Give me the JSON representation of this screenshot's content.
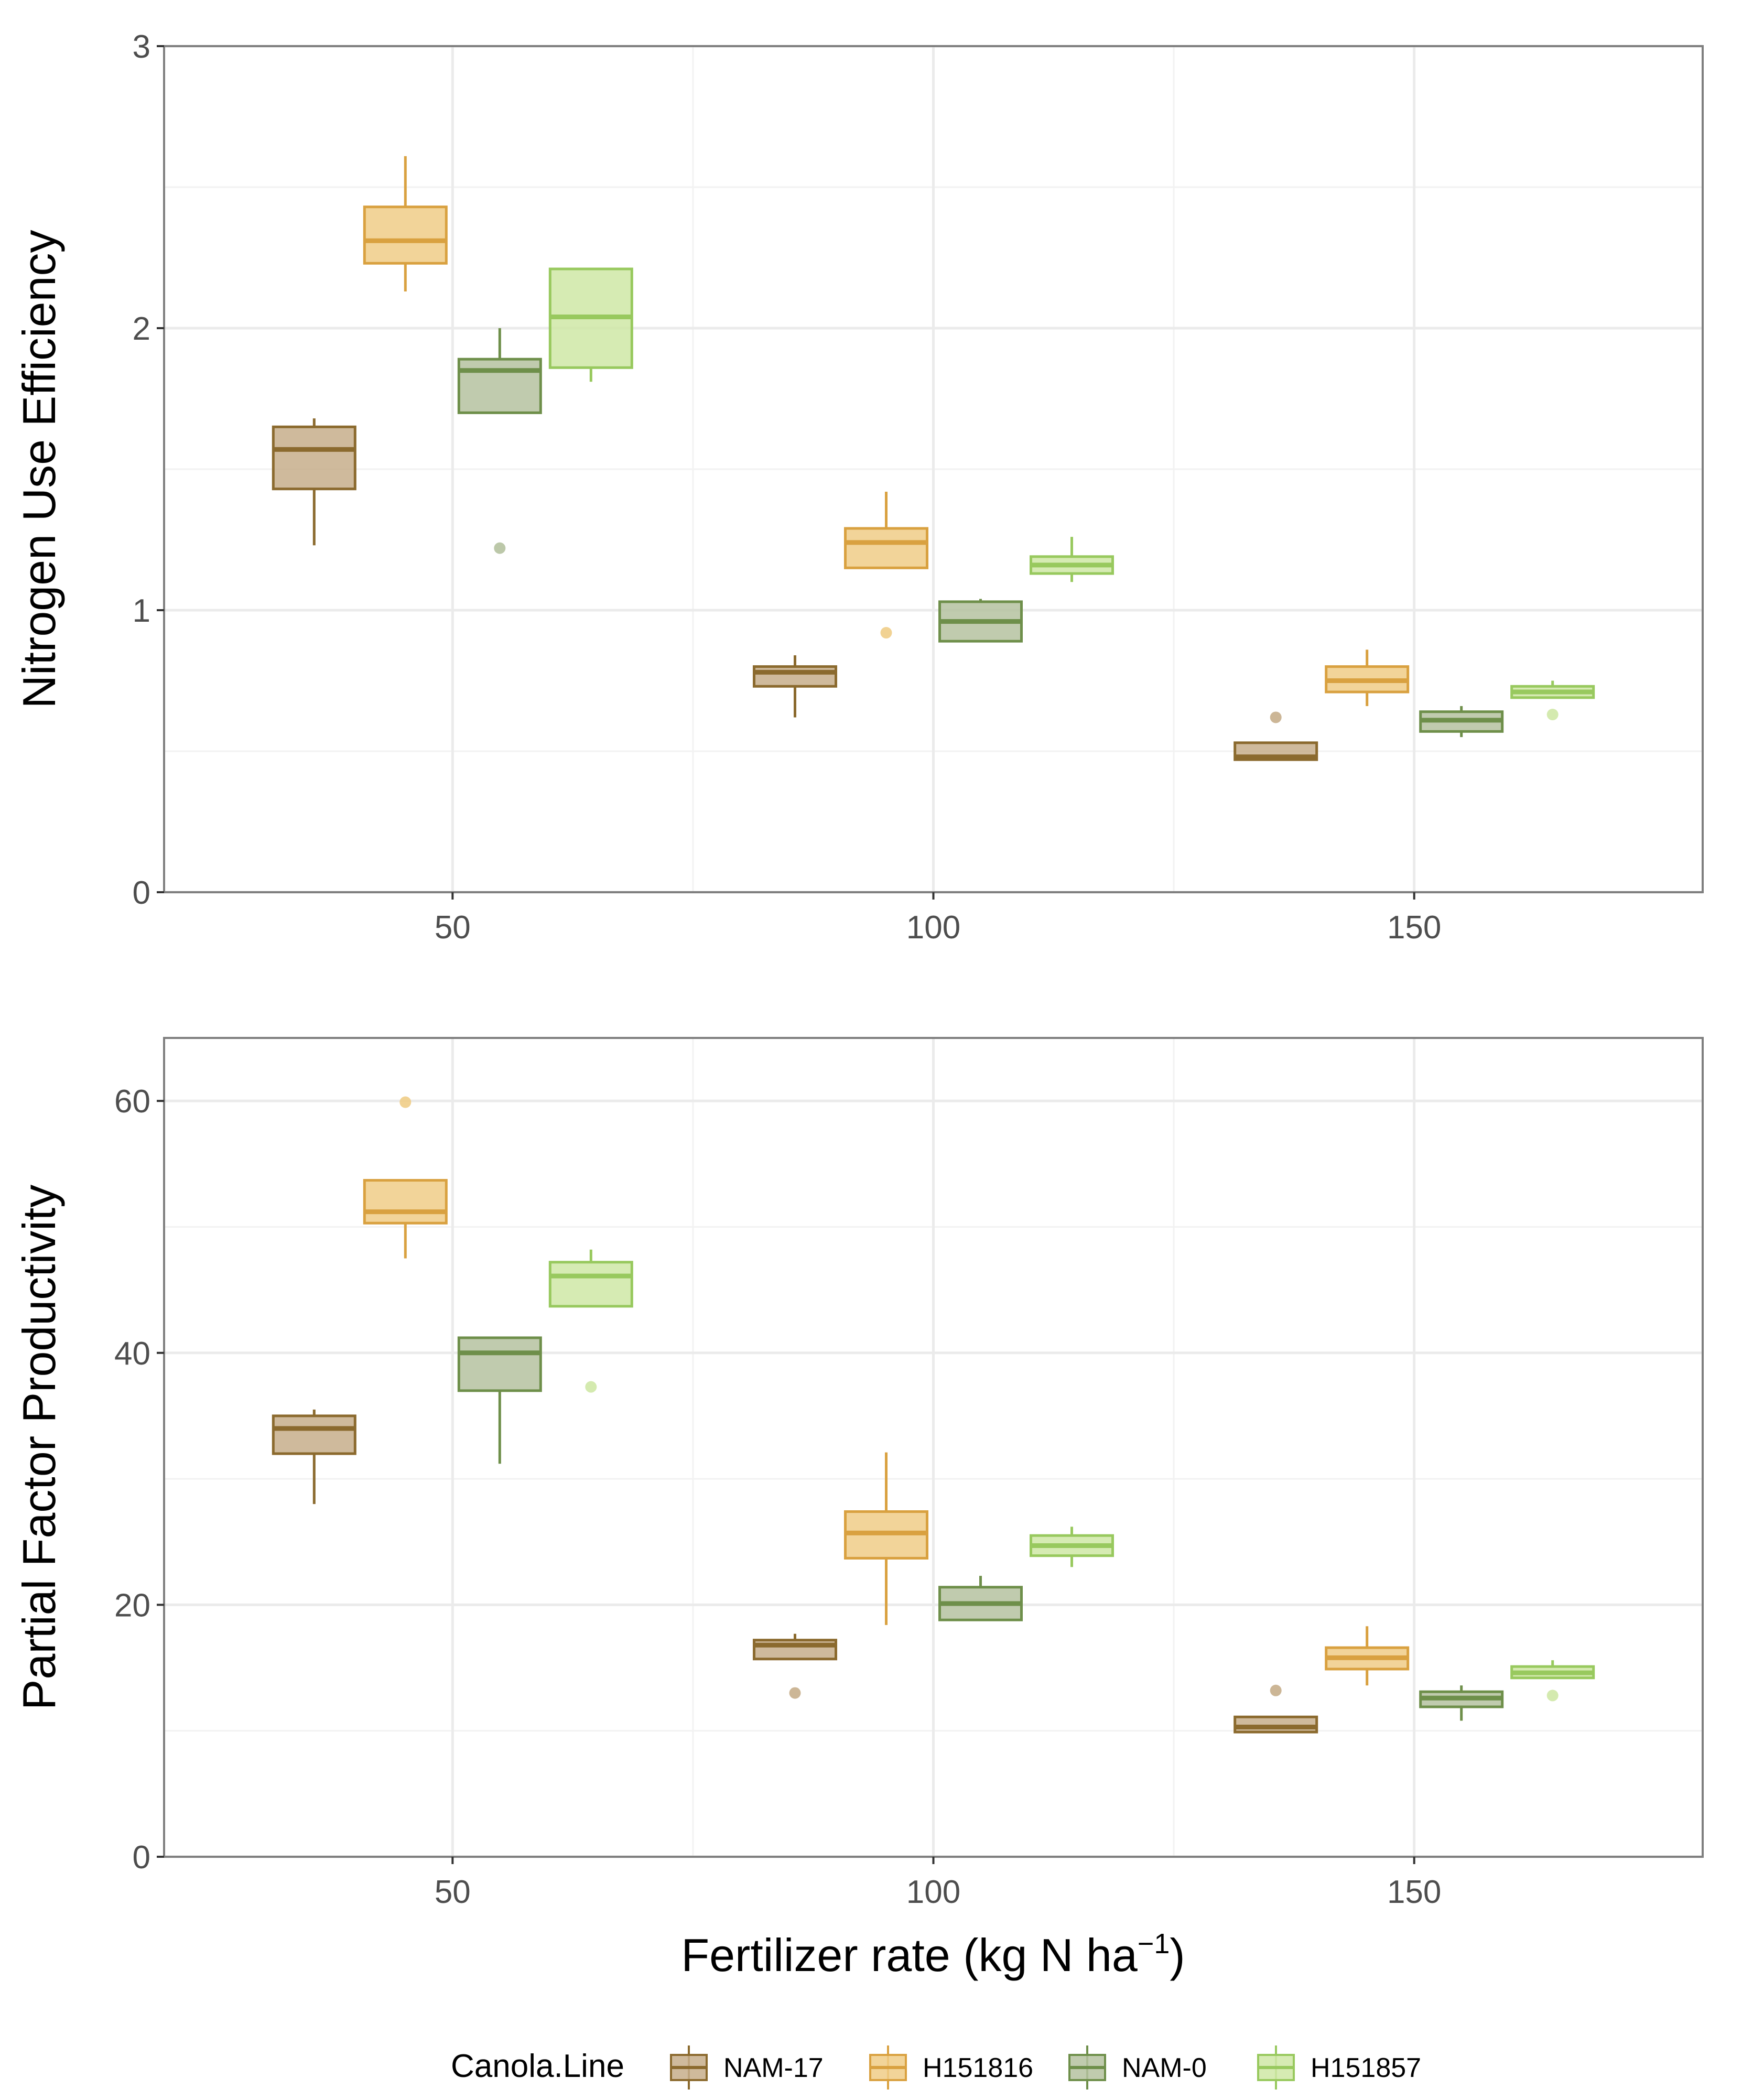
{
  "chart_data": [
    {
      "type": "box",
      "ylabel": "Nitrogen Use Efficiency",
      "xlabel": "",
      "x_ticks": [
        50,
        100,
        150
      ],
      "xlim": [
        20,
        180
      ],
      "ylim": [
        0,
        3
      ],
      "y_ticks": [
        0,
        1,
        2,
        3
      ],
      "y_minor": [
        0.5,
        1.5,
        2.5
      ],
      "series": [
        {
          "name": "NAM-17",
          "boxes": [
            {
              "x": 50,
              "q1": 1.43,
              "median": 1.57,
              "q3": 1.65,
              "whisker_low": 1.23,
              "whisker_high": 1.68,
              "outliers": []
            },
            {
              "x": 100,
              "q1": 0.73,
              "median": 0.78,
              "q3": 0.8,
              "whisker_low": 0.62,
              "whisker_high": 0.84,
              "outliers": []
            },
            {
              "x": 150,
              "q1": 0.47,
              "median": 0.48,
              "q3": 0.53,
              "whisker_low": 0.47,
              "whisker_high": 0.53,
              "outliers": [
                0.62
              ]
            }
          ]
        },
        {
          "name": "H151816",
          "boxes": [
            {
              "x": 50,
              "q1": 2.23,
              "median": 2.31,
              "q3": 2.43,
              "whisker_low": 2.13,
              "whisker_high": 2.61,
              "outliers": []
            },
            {
              "x": 100,
              "q1": 1.15,
              "median": 1.24,
              "q3": 1.29,
              "whisker_low": 1.15,
              "whisker_high": 1.42,
              "outliers": [
                0.92
              ]
            },
            {
              "x": 150,
              "q1": 0.71,
              "median": 0.75,
              "q3": 0.8,
              "whisker_low": 0.66,
              "whisker_high": 0.86,
              "outliers": []
            }
          ]
        },
        {
          "name": "NAM-0",
          "boxes": [
            {
              "x": 50,
              "q1": 1.7,
              "median": 1.85,
              "q3": 1.89,
              "whisker_low": 1.7,
              "whisker_high": 2.0,
              "outliers": [
                1.22
              ]
            },
            {
              "x": 100,
              "q1": 0.89,
              "median": 0.96,
              "q3": 1.03,
              "whisker_low": 0.89,
              "whisker_high": 1.04,
              "outliers": []
            },
            {
              "x": 150,
              "q1": 0.57,
              "median": 0.61,
              "q3": 0.64,
              "whisker_low": 0.55,
              "whisker_high": 0.66,
              "outliers": []
            }
          ]
        },
        {
          "name": "H151857",
          "boxes": [
            {
              "x": 50,
              "q1": 1.86,
              "median": 2.04,
              "q3": 2.21,
              "whisker_low": 1.81,
              "whisker_high": 2.21,
              "outliers": []
            },
            {
              "x": 100,
              "q1": 1.13,
              "median": 1.16,
              "q3": 1.19,
              "whisker_low": 1.1,
              "whisker_high": 1.26,
              "outliers": []
            },
            {
              "x": 150,
              "q1": 0.69,
              "median": 0.71,
              "q3": 0.73,
              "whisker_low": 0.69,
              "whisker_high": 0.75,
              "outliers": [
                0.63
              ]
            }
          ]
        }
      ]
    },
    {
      "type": "box",
      "ylabel": "Partial Factor Productivity",
      "xlabel": "",
      "x_ticks": [
        50,
        100,
        150
      ],
      "xlim": [
        20,
        180
      ],
      "ylim": [
        0,
        65
      ],
      "y_ticks": [
        0,
        20,
        40,
        60
      ],
      "y_minor": [
        10,
        30,
        50
      ],
      "series": [
        {
          "name": "NAM-17",
          "boxes": [
            {
              "x": 50,
              "q1": 32,
              "median": 34,
              "q3": 35,
              "whisker_low": 28,
              "whisker_high": 35.5,
              "outliers": []
            },
            {
              "x": 100,
              "q1": 15.7,
              "median": 16.8,
              "q3": 17.2,
              "whisker_low": 15.7,
              "whisker_high": 17.7,
              "outliers": [
                13
              ]
            },
            {
              "x": 150,
              "q1": 9.9,
              "median": 10.3,
              "q3": 11.1,
              "whisker_low": 9.9,
              "whisker_high": 11.1,
              "outliers": [
                13.2
              ]
            }
          ]
        },
        {
          "name": "H151816",
          "boxes": [
            {
              "x": 50,
              "q1": 50.3,
              "median": 51.2,
              "q3": 53.7,
              "whisker_low": 47.5,
              "whisker_high": 53.7,
              "outliers": [
                59.9
              ]
            },
            {
              "x": 100,
              "q1": 23.7,
              "median": 25.7,
              "q3": 27.4,
              "whisker_low": 18.4,
              "whisker_high": 32.1,
              "outliers": []
            },
            {
              "x": 150,
              "q1": 14.9,
              "median": 15.8,
              "q3": 16.6,
              "whisker_low": 13.6,
              "whisker_high": 18.3,
              "outliers": []
            }
          ]
        },
        {
          "name": "NAM-0",
          "boxes": [
            {
              "x": 50,
              "q1": 37,
              "median": 40,
              "q3": 41.2,
              "whisker_low": 31.2,
              "whisker_high": 41.2,
              "outliers": []
            },
            {
              "x": 100,
              "q1": 18.8,
              "median": 20.1,
              "q3": 21.4,
              "whisker_low": 18.8,
              "whisker_high": 22.3,
              "outliers": []
            },
            {
              "x": 150,
              "q1": 11.9,
              "median": 12.6,
              "q3": 13.1,
              "whisker_low": 10.8,
              "whisker_high": 13.6,
              "outliers": []
            }
          ]
        },
        {
          "name": "H151857",
          "boxes": [
            {
              "x": 50,
              "q1": 43.7,
              "median": 46.1,
              "q3": 47.2,
              "whisker_low": 43.7,
              "whisker_high": 48.2,
              "outliers": [
                37.3
              ]
            },
            {
              "x": 100,
              "q1": 23.9,
              "median": 24.7,
              "q3": 25.5,
              "whisker_low": 23,
              "whisker_high": 26.2,
              "outliers": []
            },
            {
              "x": 150,
              "q1": 14.2,
              "median": 14.6,
              "q3": 15.1,
              "whisker_low": 14.2,
              "whisker_high": 15.6,
              "outliers": [
                12.8
              ]
            }
          ]
        }
      ]
    }
  ],
  "x_axis_title": {
    "prefix": "Fertilizer rate (kg N ha",
    "superscript": "−1",
    "suffix": ")"
  },
  "legend": {
    "title": "Canola.Line",
    "position": "bottom",
    "items": [
      {
        "label": "NAM-17",
        "fill": "#c7ae8b",
        "stroke": "#8b6a2e"
      },
      {
        "label": "H151816",
        "fill": "#f0cd87",
        "stroke": "#d9a140"
      },
      {
        "label": "NAM-0",
        "fill": "#b5c2a0",
        "stroke": "#6e8f4a"
      },
      {
        "label": "H151857",
        "fill": "#cfe8a6",
        "stroke": "#98c95e"
      }
    ]
  }
}
